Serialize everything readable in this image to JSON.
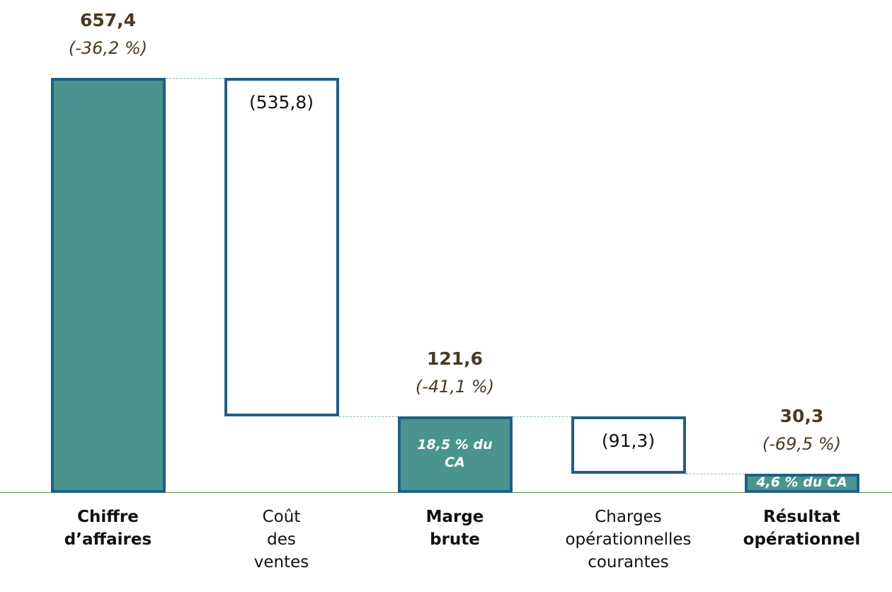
{
  "chart_data": {
    "type": "waterfall",
    "categories": [
      "Chiffre d’affaires",
      "Coût des ventes",
      "Marge brute",
      "Charges opérationnelles courantes",
      "Résultat opérationnel"
    ],
    "kinds": [
      "total",
      "delta",
      "total",
      "delta",
      "total"
    ],
    "values": [
      657.4,
      -535.8,
      121.6,
      -91.3,
      30.3
    ],
    "value_labels": [
      "657,4",
      "(535,8)",
      "121,6",
      "(91,3)",
      "30,3"
    ],
    "change_labels": [
      "(-36,2 %)",
      null,
      "(-41,1 %)",
      null,
      "(-69,5 %)"
    ],
    "margin_labels": [
      null,
      null,
      "18,5 % du CA",
      null,
      "4,6 % du CA"
    ],
    "colors": {
      "total": "#4a9490",
      "delta": "#ffffff",
      "border": "#1f5f85"
    }
  }
}
